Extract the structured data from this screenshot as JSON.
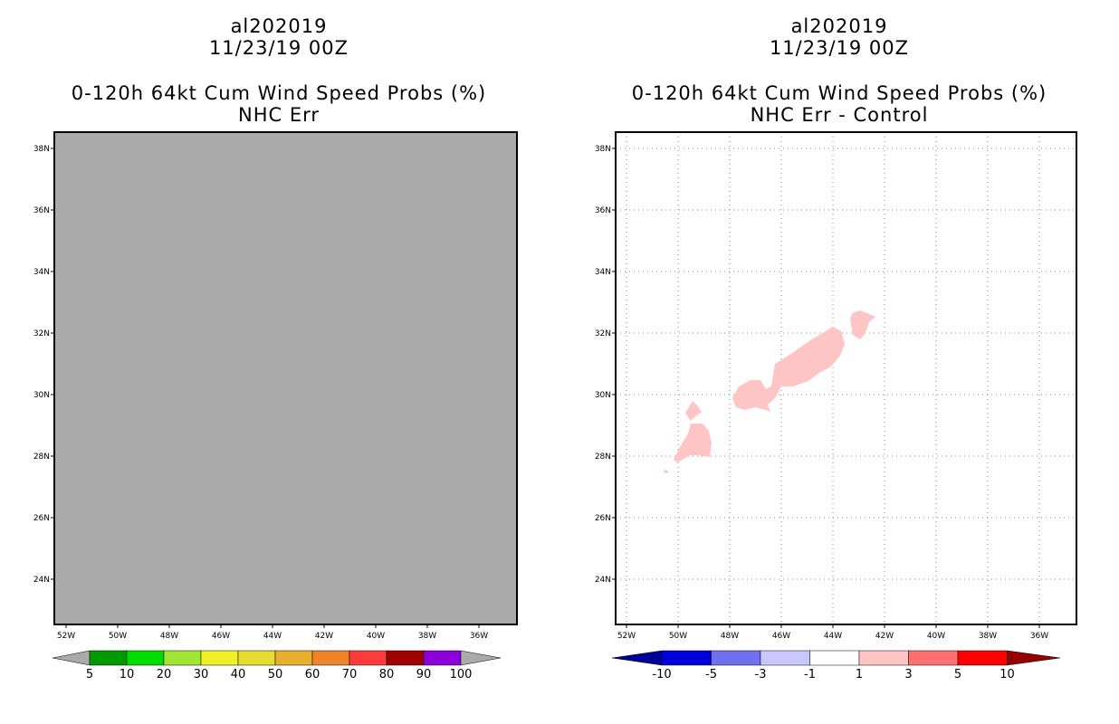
{
  "left_panel": {
    "title_line1": "al202019",
    "title_line2": "11/23/19 00Z",
    "subtitle_line1": "0-120h 64kt Cum Wind Speed Probs (%)",
    "subtitle_line2": "NHC Err",
    "background_color": "#aaaaaa",
    "x_ticks": [
      "52W",
      "50W",
      "48W",
      "46W",
      "44W",
      "42W",
      "40W",
      "38W",
      "36W"
    ],
    "y_ticks": [
      "24N",
      "26N",
      "28N",
      "30N",
      "32N",
      "34N",
      "36N",
      "38N"
    ],
    "colorbar": {
      "labels": [
        "5",
        "10",
        "20",
        "30",
        "40",
        "50",
        "60",
        "70",
        "80",
        "90",
        "100"
      ],
      "colors": [
        "#009a00",
        "#00dc00",
        "#a0e632",
        "#f0f028",
        "#e6dc32",
        "#e6af2d",
        "#f08228",
        "#fa3c3c",
        "#a00000",
        "#8c00dc"
      ],
      "end_color": "#aaaaaa"
    }
  },
  "right_panel": {
    "title_line1": "al202019",
    "title_line2": "11/23/19 00Z",
    "subtitle_line1": "0-120h 64kt Cum Wind Speed Probs (%)",
    "subtitle_line2": "NHC Err - Control",
    "x_ticks": [
      "52W",
      "50W",
      "48W",
      "46W",
      "44W",
      "42W",
      "40W",
      "38W",
      "36W"
    ],
    "y_ticks": [
      "24N",
      "26N",
      "28N",
      "30N",
      "32N",
      "34N",
      "36N",
      "38N"
    ],
    "shading_color": "#ffc4c4",
    "colorbar": {
      "labels": [
        "-10",
        "-5",
        "-3",
        "-1",
        "1",
        "3",
        "5",
        "10"
      ],
      "colors": [
        "#0000dc",
        "#7070f0",
        "#c8c8ff",
        "#ffffff",
        "#ffc4c4",
        "#ff7070",
        "#ff0000"
      ],
      "low_end_color": "#000096",
      "high_end_color": "#960000"
    }
  }
}
